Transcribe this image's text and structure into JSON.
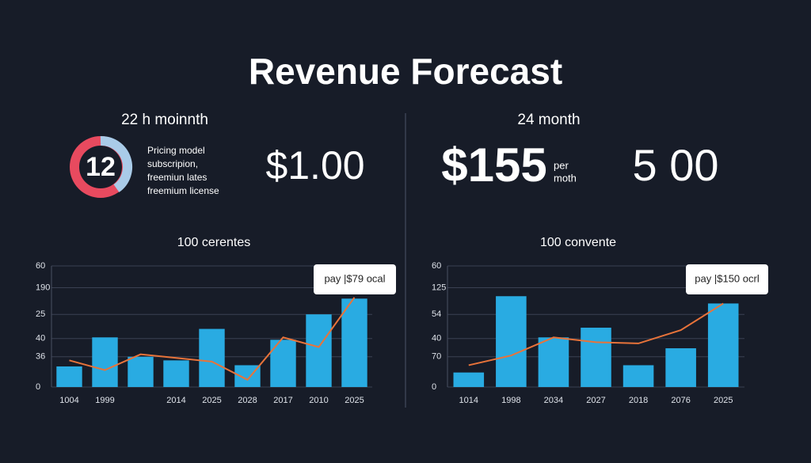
{
  "header": {
    "title": "Revenue Forecast"
  },
  "left_panel": {
    "label": "22 h moinnth",
    "badge": "12",
    "notes": [
      "Pricing model",
      "subscripion,",
      "freemiun lates",
      "freemium license"
    ],
    "amount": "$1.00"
  },
  "right_panel": {
    "label": "24 month",
    "amount": "$155",
    "unit": [
      "per",
      "moth"
    ],
    "figure": "5 00"
  },
  "chart_data": [
    {
      "type": "bar",
      "subtitle": "100 cerentes",
      "annotation": "pay |$79 ocal",
      "categories": [
        "1004",
        "1999",
        null,
        "2014",
        "2025",
        "2028",
        "2017",
        "2010",
        "2025"
      ],
      "series": [
        {
          "type": "bar",
          "color": "#29abe2",
          "values": [
            17,
            41,
            25,
            22,
            48,
            18,
            39,
            60,
            73
          ]
        },
        {
          "type": "line",
          "color": "#e8733a",
          "values": [
            22,
            14,
            27,
            24,
            21,
            6,
            41,
            33,
            74
          ]
        }
      ],
      "ylim": [
        0,
        100
      ],
      "yticks": [
        0,
        {
          "value": 25,
          "label": "36"
        },
        40,
        {
          "value": 60,
          "label": "25"
        },
        {
          "value": 82,
          "label": "190"
        },
        {
          "value": 100,
          "label": "60"
        }
      ],
      "grid": true
    },
    {
      "type": "bar",
      "subtitle": "100 convente",
      "annotation": "pay |$150 ocrl",
      "categories": [
        "1014",
        "1998",
        "2034",
        "2027",
        "2018",
        "2076",
        "2025"
      ],
      "series": [
        {
          "type": "bar",
          "color": "#29abe2",
          "values": [
            12,
            75,
            41,
            49,
            18,
            32,
            69
          ]
        },
        {
          "type": "line",
          "color": "#e8733a",
          "values": [
            18,
            26,
            41,
            37,
            36,
            47,
            69
          ]
        }
      ],
      "ylim": [
        0,
        100
      ],
      "yticks": [
        0,
        {
          "value": 25,
          "label": "70"
        },
        40,
        {
          "value": 60,
          "label": "54"
        },
        {
          "value": 82,
          "label": "125"
        },
        {
          "value": 100,
          "label": "60"
        }
      ],
      "grid": true
    }
  ]
}
